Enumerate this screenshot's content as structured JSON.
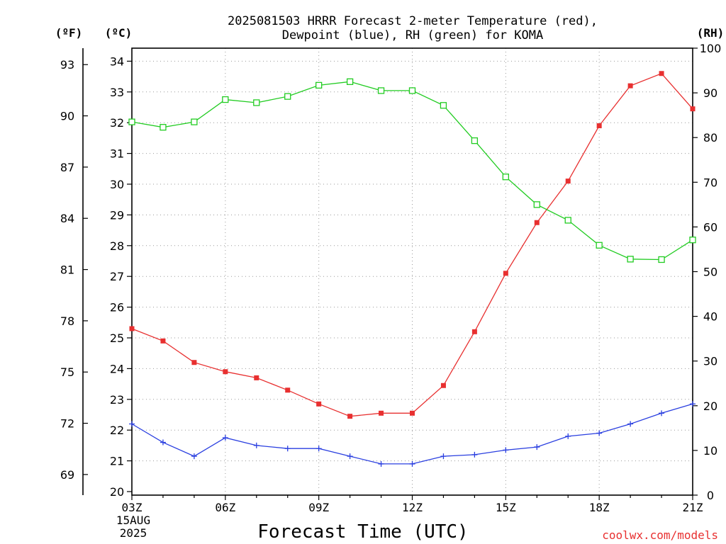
{
  "chart_data": {
    "type": "line",
    "title_line1": "2025081503 HRRR Forecast 2-meter Temperature (red),",
    "title_line2": "Dewpoint (blue), RH (green) for KOMA",
    "xlabel": "Forecast Time (UTC)",
    "credit": "coolwx.com/models",
    "date_label": {
      "day": "15AUG",
      "year": "2025"
    },
    "axis_units": {
      "fahrenheit": "(ºF)",
      "celsius": "(ºC)",
      "rh": "(RH)"
    },
    "x_categories": [
      "03Z",
      "04Z",
      "05Z",
      "06Z",
      "07Z",
      "08Z",
      "09Z",
      "10Z",
      "11Z",
      "12Z",
      "13Z",
      "14Z",
      "15Z",
      "16Z",
      "17Z",
      "18Z",
      "19Z",
      "20Z",
      "21Z"
    ],
    "x_tick_labels": [
      "03Z",
      "06Z",
      "09Z",
      "12Z",
      "15Z",
      "18Z",
      "21Z"
    ],
    "y_celsius": {
      "min": 20,
      "max": 34.5,
      "ticks": [
        20,
        21,
        22,
        23,
        24,
        25,
        26,
        27,
        28,
        29,
        30,
        31,
        32,
        33,
        34
      ]
    },
    "y_fahrenheit": {
      "ticks": [
        69,
        72,
        75,
        78,
        81,
        84,
        87,
        90,
        93
      ]
    },
    "y_rh": {
      "min": 0,
      "max": 100,
      "ticks": [
        0,
        10,
        20,
        30,
        40,
        50,
        60,
        70,
        80,
        90,
        100
      ]
    },
    "grid": true,
    "series": [
      {
        "name": "Temperature",
        "unit": "C",
        "axis": "celsius",
        "color": "#e83030",
        "marker": "filled-square",
        "values": [
          25.3,
          24.9,
          24.2,
          23.9,
          23.7,
          23.3,
          22.85,
          22.45,
          22.55,
          22.55,
          23.45,
          25.2,
          27.1,
          28.75,
          30.1,
          31.9,
          33.2,
          33.6,
          32.45
        ]
      },
      {
        "name": "Dewpoint",
        "unit": "C",
        "axis": "celsius",
        "color": "#2a3fe0",
        "marker": "plus",
        "values": [
          22.2,
          21.6,
          21.15,
          21.75,
          21.5,
          21.4,
          21.4,
          21.15,
          20.9,
          20.9,
          21.15,
          21.2,
          21.35,
          21.45,
          21.8,
          21.9,
          22.2,
          22.55,
          22.85
        ]
      },
      {
        "name": "RH",
        "unit": "%",
        "axis": "rh",
        "color": "#22cc22",
        "marker": "open-square",
        "values": [
          83.5,
          82.3,
          83.5,
          88.5,
          87.8,
          89.2,
          91.7,
          92.5,
          90.5,
          90.5,
          87.2,
          79.3,
          71.2,
          65.0,
          61.5,
          55.9,
          52.8,
          52.7,
          57.1
        ]
      }
    ]
  }
}
